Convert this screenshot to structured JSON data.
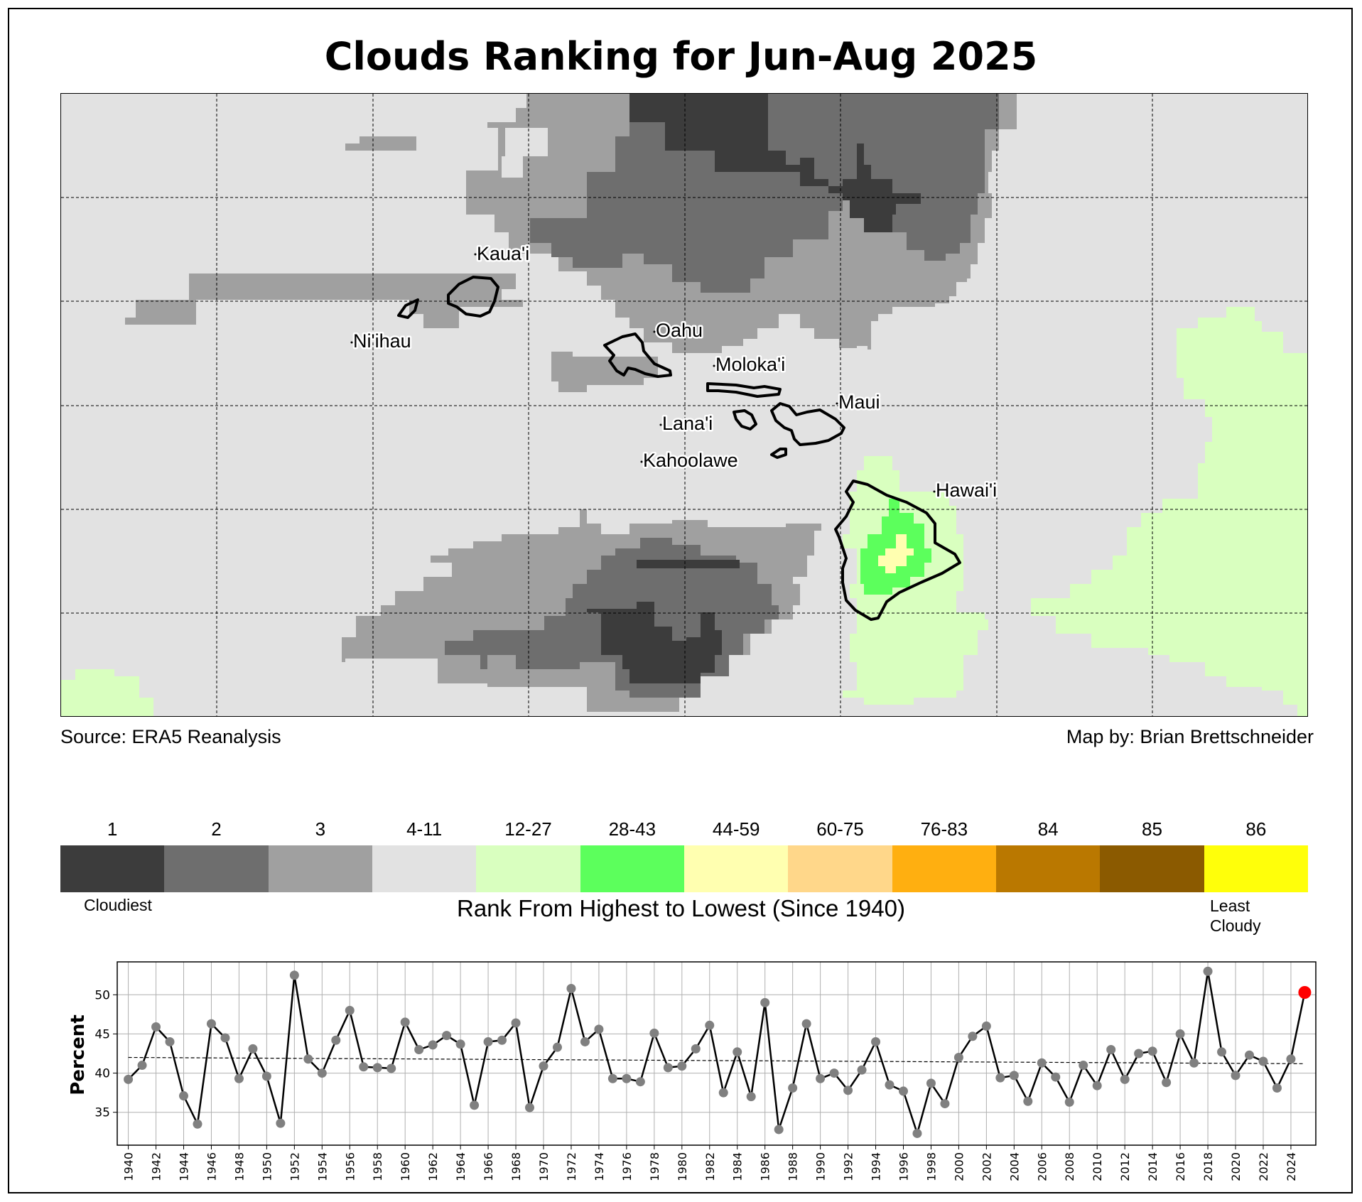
{
  "title": "Clouds Ranking for Jun-Aug 2025",
  "source_text": "Source: ERA5 Reanalysis",
  "credit_text": "Map by: Brian Brettschneider",
  "islands": [
    {
      "name": "Kaua'i"
    },
    {
      "name": "Ni'ihau"
    },
    {
      "name": "Oahu"
    },
    {
      "name": "Moloka'i"
    },
    {
      "name": "Maui"
    },
    {
      "name": "Lana'i"
    },
    {
      "name": "Kahoolawe"
    },
    {
      "name": "Hawai'i"
    }
  ],
  "legend": {
    "title": "Rank From Highest to Lowest (Since 1940)",
    "low_label": "Cloudiest",
    "high_label_1": "Least",
    "high_label_2": "Cloudy",
    "categories": [
      {
        "label": "1",
        "color": "#3c3c3c"
      },
      {
        "label": "2",
        "color": "#6e6e6e"
      },
      {
        "label": "3",
        "color": "#a0a0a0"
      },
      {
        "label": "4-11",
        "color": "#e2e2e2"
      },
      {
        "label": "12-27",
        "color": "#d9ffbf"
      },
      {
        "label": "28-43",
        "color": "#5cff5c"
      },
      {
        "label": "44-59",
        "color": "#ffffb0"
      },
      {
        "label": "60-75",
        "color": "#ffd78a"
      },
      {
        "label": "76-83",
        "color": "#ffaf10"
      },
      {
        "label": "84",
        "color": "#ba7800"
      },
      {
        "label": "85",
        "color": "#8b5a00"
      },
      {
        "label": "86",
        "color": "#ffff0a"
      }
    ]
  },
  "chart_data": {
    "type": "line",
    "ylabel": "Percent",
    "ylim": [
      30.8,
      54.2
    ],
    "yticks": [
      35,
      40,
      45,
      50
    ],
    "xlim": [
      1939.2,
      2025.8
    ],
    "x": [
      1940,
      1941,
      1942,
      1943,
      1944,
      1945,
      1946,
      1947,
      1948,
      1949,
      1950,
      1951,
      1952,
      1953,
      1954,
      1955,
      1956,
      1957,
      1958,
      1959,
      1960,
      1961,
      1962,
      1963,
      1964,
      1965,
      1966,
      1967,
      1968,
      1969,
      1970,
      1971,
      1972,
      1973,
      1974,
      1975,
      1976,
      1977,
      1978,
      1979,
      1980,
      1981,
      1982,
      1983,
      1984,
      1985,
      1986,
      1987,
      1988,
      1989,
      1990,
      1991,
      1992,
      1993,
      1994,
      1995,
      1996,
      1997,
      1998,
      1999,
      2000,
      2001,
      2002,
      2003,
      2004,
      2005,
      2006,
      2007,
      2008,
      2009,
      2010,
      2011,
      2012,
      2013,
      2014,
      2015,
      2016,
      2017,
      2018,
      2019,
      2020,
      2021,
      2022,
      2023,
      2024,
      2025
    ],
    "values": [
      39.2,
      41.0,
      45.9,
      44.0,
      37.1,
      33.5,
      46.3,
      44.5,
      39.3,
      43.1,
      39.6,
      33.6,
      52.5,
      41.8,
      40.0,
      44.2,
      48.0,
      40.8,
      40.7,
      40.6,
      46.5,
      43.0,
      43.6,
      44.8,
      43.7,
      35.9,
      44.0,
      44.2,
      46.4,
      35.6,
      40.9,
      43.3,
      50.8,
      44.0,
      45.6,
      39.3,
      39.3,
      38.9,
      45.1,
      40.7,
      40.9,
      43.1,
      46.1,
      37.5,
      42.7,
      37.0,
      49.0,
      32.8,
      38.1,
      46.3,
      39.3,
      40.0,
      37.8,
      40.4,
      44.0,
      38.5,
      37.7,
      32.3,
      38.7,
      36.1,
      42.0,
      44.7,
      46.0,
      39.4,
      39.7,
      36.4,
      41.3,
      39.5,
      36.3,
      41.0,
      38.4,
      43.0,
      39.2,
      42.5,
      42.8,
      38.8,
      45.0,
      41.3,
      53.0,
      42.7,
      39.7,
      42.3,
      41.5,
      38.1,
      41.8,
      50.3
    ],
    "trend": {
      "start": [
        1940,
        42.0
      ],
      "end": [
        2025,
        41.2
      ]
    },
    "highlight": {
      "year": 2025,
      "value": 50.3,
      "color": "#ff0000"
    },
    "line_color": "#000000",
    "marker_color": "#808080",
    "grid": true,
    "xtick_step": 2
  }
}
